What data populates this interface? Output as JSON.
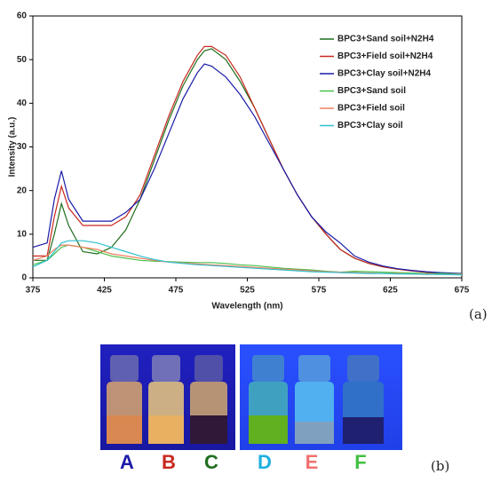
{
  "chart_data": {
    "type": "line",
    "xlabel": "Wavelength (nm)",
    "ylabel": "Intensity (a.u.)",
    "x": [
      375,
      385,
      390,
      395,
      400,
      410,
      420,
      430,
      440,
      450,
      460,
      470,
      480,
      490,
      495,
      500,
      510,
      520,
      530,
      540,
      550,
      560,
      570,
      580,
      590,
      600,
      610,
      620,
      630,
      640,
      650,
      660,
      675
    ],
    "series": [
      {
        "name": "BPC3+Sand soil+N2H4",
        "color": "#1f6e1f",
        "values": [
          4,
          4,
          10,
          17,
          12,
          6,
          5.5,
          7,
          11,
          18,
          27,
          36,
          44,
          50,
          52,
          52.5,
          50,
          45,
          39,
          32,
          25,
          19,
          14,
          10,
          6.5,
          4.5,
          3.3,
          2.5,
          2,
          1.6,
          1.3,
          1.1,
          0.9
        ]
      },
      {
        "name": "BPC3+Field soil+N2H4",
        "color": "#c8281e",
        "values": [
          5,
          5,
          14,
          21,
          16,
          12,
          12,
          12,
          14,
          19,
          28,
          37,
          45,
          51,
          53,
          53,
          51,
          46,
          39,
          32,
          25,
          19,
          14,
          10,
          6.5,
          4.5,
          3.3,
          2.5,
          2,
          1.6,
          1.3,
          1.1,
          0.9
        ]
      },
      {
        "name": "BPC3+Clay soil+N2H4",
        "color": "#1a1aa8",
        "values": [
          7,
          8,
          18,
          24.5,
          18,
          13,
          13,
          13,
          15,
          18,
          25,
          33,
          41,
          47,
          49,
          48.5,
          46,
          42,
          37,
          31,
          25,
          19,
          14,
          10.5,
          8,
          5,
          3.6,
          2.7,
          2.1,
          1.7,
          1.4,
          1.2,
          1
        ]
      },
      {
        "name": "BPC3+Sand soil",
        "color": "#4cc04c",
        "values": [
          3,
          4,
          5.5,
          7,
          7.5,
          7,
          6,
          5,
          4.5,
          4,
          3.8,
          3.7,
          3.6,
          3.5,
          3.5,
          3.5,
          3.3,
          3,
          2.8,
          2.5,
          2.2,
          2,
          1.8,
          1.5,
          1.3,
          1.5,
          1.4,
          1.3,
          1.2,
          1.1,
          1,
          1,
          0.9
        ]
      },
      {
        "name": "BPC3+Field soil",
        "color": "#f08060",
        "values": [
          4,
          5,
          6.5,
          7.5,
          7.5,
          7,
          6.5,
          5.5,
          5,
          4.5,
          4,
          3.6,
          3.4,
          3.2,
          3.1,
          3,
          2.8,
          2.6,
          2.4,
          2.2,
          2,
          1.8,
          1.6,
          1.4,
          1.3,
          1.2,
          1.1,
          1,
          1,
          0.9,
          0.9,
          0.8,
          0.8
        ]
      },
      {
        "name": "BPC3+Clay soil",
        "color": "#30c0d0",
        "values": [
          2.5,
          4,
          6,
          8,
          8.5,
          8.5,
          8,
          7,
          6,
          5,
          4.2,
          3.6,
          3.3,
          3,
          2.9,
          2.8,
          2.6,
          2.4,
          2.2,
          2,
          1.8,
          1.6,
          1.4,
          1.3,
          1.2,
          1.1,
          1,
          1,
          0.9,
          0.9,
          0.8,
          0.8,
          0.7
        ]
      }
    ],
    "xlim": [
      375,
      675
    ],
    "xticks": [
      375,
      425,
      475,
      525,
      575,
      625,
      675
    ],
    "ylim": [
      0,
      60
    ],
    "yticks": [
      0,
      10,
      20,
      30,
      40,
      50,
      60
    ],
    "legend": "upper right"
  },
  "panel_labels": [
    "(a)",
    "(b)"
  ],
  "photo_labels": [
    {
      "text": "A",
      "color": "#1a1aa8"
    },
    {
      "text": "B",
      "color": "#c8281e"
    },
    {
      "text": "C",
      "color": "#1f6e1f"
    },
    {
      "text": "D",
      "color": "#20b0e0"
    },
    {
      "text": "E",
      "color": "#f07070"
    },
    {
      "text": "F",
      "color": "#40c040"
    }
  ]
}
